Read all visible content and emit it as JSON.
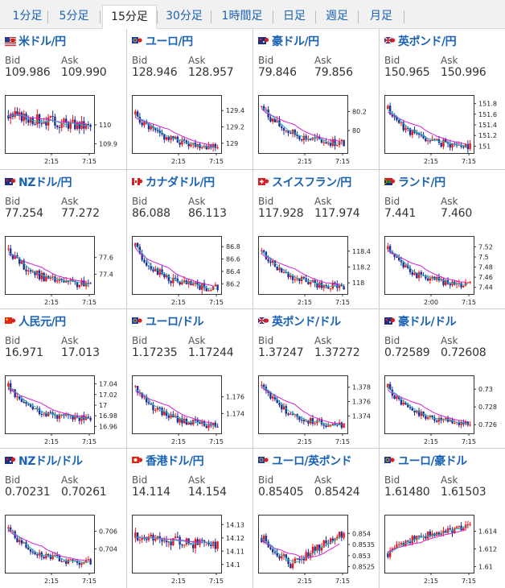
{
  "tabs": [
    "1分足",
    "5分足",
    "15分足",
    "30分足",
    "1時間足",
    "日足",
    "週足",
    "月足"
  ],
  "active_tab": "15分足",
  "labels": {
    "bid": "Bid",
    "ask": "Ask"
  },
  "colors": {
    "up": "#e8191b",
    "down": "#1c2f9a",
    "ma_long": "#d61fd6",
    "ma_short": "#2ab4b4",
    "link": "#1a62b3"
  },
  "pairs": [
    {
      "name": "米ドル/円",
      "flag": "usd",
      "bid": "109.986",
      "ask": "109.990"
    },
    {
      "name": "ユーロ/円",
      "flag": "eur",
      "bid": "128.946",
      "ask": "128.957"
    },
    {
      "name": "豪ドル/円",
      "flag": "aud",
      "bid": "79.846",
      "ask": "79.856"
    },
    {
      "name": "英ポンド/円",
      "flag": "gbp",
      "bid": "150.965",
      "ask": "150.996"
    },
    {
      "name": "NZドル/円",
      "flag": "nzd",
      "bid": "77.254",
      "ask": "77.272"
    },
    {
      "name": "カナダドル/円",
      "flag": "cad",
      "bid": "86.088",
      "ask": "86.113"
    },
    {
      "name": "スイスフラン/円",
      "flag": "chf",
      "bid": "117.928",
      "ask": "117.974"
    },
    {
      "name": "ランド/円",
      "flag": "zar",
      "bid": "7.441",
      "ask": "7.460"
    },
    {
      "name": "人民元/円",
      "flag": "cny",
      "bid": "16.971",
      "ask": "17.013"
    },
    {
      "name": "ユーロ/ドル",
      "flag": "eur",
      "bid": "1.17235",
      "ask": "1.17244"
    },
    {
      "name": "英ポンド/ドル",
      "flag": "gbp",
      "bid": "1.37247",
      "ask": "1.37272"
    },
    {
      "name": "豪ドル/ドル",
      "flag": "aud",
      "bid": "0.72589",
      "ask": "0.72608"
    },
    {
      "name": "NZドル/ドル",
      "flag": "nzd",
      "bid": "0.70231",
      "ask": "0.70261"
    },
    {
      "name": "香港ドル/円",
      "flag": "hkd",
      "bid": "14.114",
      "ask": "14.154"
    },
    {
      "name": "ユーロ/英ポンド",
      "flag": "eur",
      "bid": "0.85405",
      "ask": "0.85424"
    },
    {
      "name": "ユーロ/豪ドル",
      "flag": "eur",
      "bid": "1.61480",
      "ask": "1.61503"
    }
  ],
  "chart_data": [
    {
      "type": "candlestick",
      "pair": "米ドル/円",
      "ylim": [
        109.86,
        110.14
      ],
      "yticks": [
        "110",
        "109.9"
      ],
      "yvals": [
        110,
        109.9
      ],
      "xticks": [
        "2:15",
        "7:15"
      ],
      "shape": "flat",
      "start": 110.05,
      "end": 109.99,
      "amp": 0.06,
      "seed": 3
    },
    {
      "type": "candlestick",
      "pair": "ユーロ/円",
      "ylim": [
        128.9,
        129.55
      ],
      "yticks": [
        "129.4",
        "129.2",
        "129"
      ],
      "yvals": [
        129.4,
        129.2,
        129
      ],
      "xticks": [
        "2:15",
        "7:15"
      ],
      "shape": "fall",
      "start": 129.35,
      "end": 128.95,
      "amp": 0.1,
      "seed": 5
    },
    {
      "type": "candlestick",
      "pair": "豪ドル/円",
      "ylim": [
        79.78,
        80.34
      ],
      "yticks": [
        "80.2",
        "80"
      ],
      "yvals": [
        80.2,
        80
      ],
      "xticks": [
        "2:15",
        "7:15"
      ],
      "shape": "fall",
      "start": 80.25,
      "end": 79.85,
      "amp": 0.09,
      "seed": 7
    },
    {
      "type": "candlestick",
      "pair": "英ポンド/円",
      "ylim": [
        150.9,
        151.9
      ],
      "yticks": [
        "151.8",
        "151.6",
        "151.4",
        "151.2",
        "151"
      ],
      "yvals": [
        151.8,
        151.6,
        151.4,
        151.2,
        151
      ],
      "xticks": [
        "2:15",
        "7:15"
      ],
      "shape": "fall",
      "start": 151.7,
      "end": 150.97,
      "amp": 0.15,
      "seed": 11
    },
    {
      "type": "candlestick",
      "pair": "NZドル/円",
      "ylim": [
        77.18,
        77.82
      ],
      "yticks": [
        "77.6",
        "77.4"
      ],
      "yvals": [
        77.6,
        77.4
      ],
      "xticks": [
        "2:15",
        "7:15"
      ],
      "shape": "fall",
      "start": 77.7,
      "end": 77.25,
      "amp": 0.1,
      "seed": 13
    },
    {
      "type": "candlestick",
      "pair": "カナダドル/円",
      "ylim": [
        86.06,
        86.92
      ],
      "yticks": [
        "86.8",
        "86.6",
        "86.4",
        "86.2"
      ],
      "yvals": [
        86.8,
        86.6,
        86.4,
        86.2
      ],
      "xticks": [
        "2:15",
        "7:15"
      ],
      "shape": "fall",
      "start": 86.8,
      "end": 86.09,
      "amp": 0.14,
      "seed": 17
    },
    {
      "type": "candlestick",
      "pair": "スイスフラン/円",
      "ylim": [
        117.88,
        118.55
      ],
      "yticks": [
        "118.4",
        "118.2",
        "118"
      ],
      "yvals": [
        118.4,
        118.2,
        118
      ],
      "xticks": [
        "2:15",
        "7:15"
      ],
      "shape": "fall",
      "start": 118.4,
      "end": 117.93,
      "amp": 0.1,
      "seed": 19
    },
    {
      "type": "candlestick",
      "pair": "ランド/円",
      "ylim": [
        7.43,
        7.535
      ],
      "yticks": [
        "7.52",
        "7.5",
        "7.48",
        "7.46",
        "7.44"
      ],
      "yvals": [
        7.52,
        7.5,
        7.48,
        7.46,
        7.44
      ],
      "xticks": [
        "2:00",
        "7:15"
      ],
      "shape": "fall",
      "start": 7.515,
      "end": 7.442,
      "amp": 0.015,
      "seed": 23
    },
    {
      "type": "candlestick",
      "pair": "人民元/円",
      "ylim": [
        16.95,
        17.05
      ],
      "yticks": [
        "17.04",
        "17.02",
        "17",
        "16.98",
        "16.96"
      ],
      "yvals": [
        17.04,
        17.02,
        17,
        16.98,
        16.96
      ],
      "xticks": [
        "2:15",
        "7:15"
      ],
      "shape": "fall",
      "start": 17.035,
      "end": 16.971,
      "amp": 0.014,
      "seed": 29
    },
    {
      "type": "candlestick",
      "pair": "ユーロ/ドル",
      "ylim": [
        1.1718,
        1.1782
      ],
      "yticks": [
        "1.176",
        "1.174"
      ],
      "yvals": [
        1.176,
        1.174
      ],
      "xticks": [
        "2:15",
        "7:15"
      ],
      "shape": "fall",
      "start": 1.1772,
      "end": 1.1724,
      "amp": 0.0009,
      "seed": 31
    },
    {
      "type": "candlestick",
      "pair": "英ポンド/ドル",
      "ylim": [
        1.3718,
        1.3792
      ],
      "yticks": [
        "1.378",
        "1.376",
        "1.374"
      ],
      "yvals": [
        1.378,
        1.376,
        1.374
      ],
      "xticks": [
        "2:15",
        "7:15"
      ],
      "shape": "fall",
      "start": 1.3782,
      "end": 1.3725,
      "amp": 0.001,
      "seed": 37
    },
    {
      "type": "candlestick",
      "pair": "豪ドル/ドル",
      "ylim": [
        0.7252,
        0.7312
      ],
      "yticks": [
        "0.73",
        "0.728",
        "0.726"
      ],
      "yvals": [
        0.73,
        0.728,
        0.726
      ],
      "xticks": [
        "2:15",
        "7:15"
      ],
      "shape": "fall",
      "start": 0.7302,
      "end": 0.7259,
      "amp": 0.0008,
      "seed": 41
    },
    {
      "type": "candlestick",
      "pair": "NZドル/ドル",
      "ylim": [
        0.7015,
        0.7075
      ],
      "yticks": [
        "0.706",
        "0.704"
      ],
      "yvals": [
        0.706,
        0.704
      ],
      "xticks": [
        "2:15",
        "7:15"
      ],
      "shape": "fall",
      "start": 0.7063,
      "end": 0.7023,
      "amp": 0.0008,
      "seed": 43
    },
    {
      "type": "candlestick",
      "pair": "香港ドル/円",
      "ylim": [
        14.095,
        14.135
      ],
      "yticks": [
        "14.13",
        "14.12",
        "14.11",
        "14.1"
      ],
      "yvals": [
        14.13,
        14.12,
        14.11,
        14.1
      ],
      "xticks": [
        "2:15",
        "7:15"
      ],
      "shape": "flat",
      "start": 14.12,
      "end": 14.114,
      "amp": 0.008,
      "seed": 47
    },
    {
      "type": "candlestick",
      "pair": "ユーロ/英ポンド",
      "ylim": [
        0.8523,
        0.8547
      ],
      "yticks": [
        "0.854",
        "0.8535",
        "0.853",
        "0.8525"
      ],
      "yvals": [
        0.854,
        0.8535,
        0.853,
        0.8525
      ],
      "xticks": [
        "2:15",
        "7:15"
      ],
      "shape": "dip",
      "start": 0.8538,
      "end": 0.85405,
      "amp": 0.0004,
      "seed": 53
    },
    {
      "type": "candlestick",
      "pair": "ユーロ/豪ドル",
      "ylim": [
        1.6095,
        1.6155
      ],
      "yticks": [
        "1.614",
        "1.612",
        "1.61"
      ],
      "yvals": [
        1.614,
        1.612,
        1.61
      ],
      "xticks": [
        "2:15",
        "7:15"
      ],
      "shape": "rise",
      "start": 1.6115,
      "end": 1.6148,
      "amp": 0.0009,
      "seed": 59
    }
  ]
}
